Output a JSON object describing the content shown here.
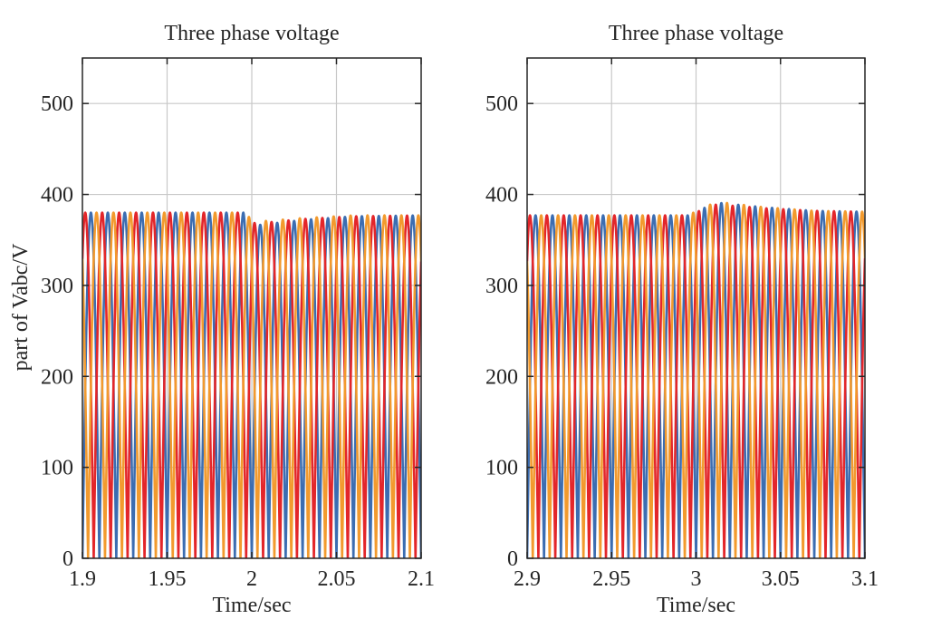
{
  "figure": {
    "ylabel": "part of Vabc/V"
  },
  "chart_data": [
    {
      "type": "line",
      "title": "Three phase voltage",
      "xlabel": "Time/sec",
      "ylabel": "part of Vabc/V",
      "xlim": [
        1.9,
        2.1
      ],
      "ylim": [
        0,
        550
      ],
      "xticks": [
        1.9,
        1.95,
        2,
        2.05,
        2.1
      ],
      "xtick_labels": [
        "1.9",
        "1.95",
        "2",
        "2.05",
        "2.1"
      ],
      "yticks": [
        0,
        100,
        200,
        300,
        400,
        500
      ],
      "ytick_labels": [
        "0",
        "100",
        "200",
        "300",
        "400",
        "500"
      ],
      "grid": true,
      "frequency_hz": 50,
      "series": [
        {
          "color": "#3c6db1",
          "phase_deg": 0,
          "envelope_t": [
            1.9,
            1.995,
            2.002,
            2.03,
            2.06,
            2.1
          ],
          "envelope_v": [
            380,
            380,
            366,
            372,
            376,
            377
          ]
        },
        {
          "color": "#e3262a",
          "phase_deg": -120,
          "envelope_t": [
            1.9,
            1.995,
            2.002,
            2.03,
            2.06,
            2.1
          ],
          "envelope_v": [
            380,
            380,
            368,
            373,
            376,
            377
          ]
        },
        {
          "color": "#f29a2e",
          "phase_deg": 120,
          "envelope_t": [
            1.9,
            1.995,
            2.002,
            2.03,
            2.06,
            2.1
          ],
          "envelope_v": [
            380,
            380,
            370,
            374,
            377,
            377
          ]
        }
      ]
    },
    {
      "type": "line",
      "title": "Three phase voltage",
      "xlabel": "Time/sec",
      "ylabel": "",
      "xlim": [
        2.9,
        3.1
      ],
      "ylim": [
        0,
        550
      ],
      "xticks": [
        2.9,
        2.95,
        3,
        3.05,
        3.1
      ],
      "xtick_labels": [
        "2.9",
        "2.95",
        "3",
        "3.05",
        "3.1"
      ],
      "yticks": [
        0,
        100,
        200,
        300,
        400,
        500
      ],
      "ytick_labels": [
        "0",
        "100",
        "200",
        "300",
        "400",
        "500"
      ],
      "grid": true,
      "frequency_hz": 50,
      "series": [
        {
          "color": "#3c6db1",
          "phase_deg": 0,
          "envelope_t": [
            2.9,
            2.995,
            3.012,
            3.04,
            3.07,
            3.1
          ],
          "envelope_v": [
            377,
            377,
            391,
            386,
            382,
            381
          ]
        },
        {
          "color": "#e3262a",
          "phase_deg": -120,
          "envelope_t": [
            2.9,
            2.995,
            3.012,
            3.04,
            3.07,
            3.1
          ],
          "envelope_v": [
            377,
            377,
            389,
            385,
            382,
            381
          ]
        },
        {
          "color": "#f29a2e",
          "phase_deg": 120,
          "envelope_t": [
            2.9,
            2.995,
            3.012,
            3.04,
            3.07,
            3.1
          ],
          "envelope_v": [
            377,
            377,
            392,
            386,
            382,
            381
          ]
        }
      ]
    }
  ]
}
